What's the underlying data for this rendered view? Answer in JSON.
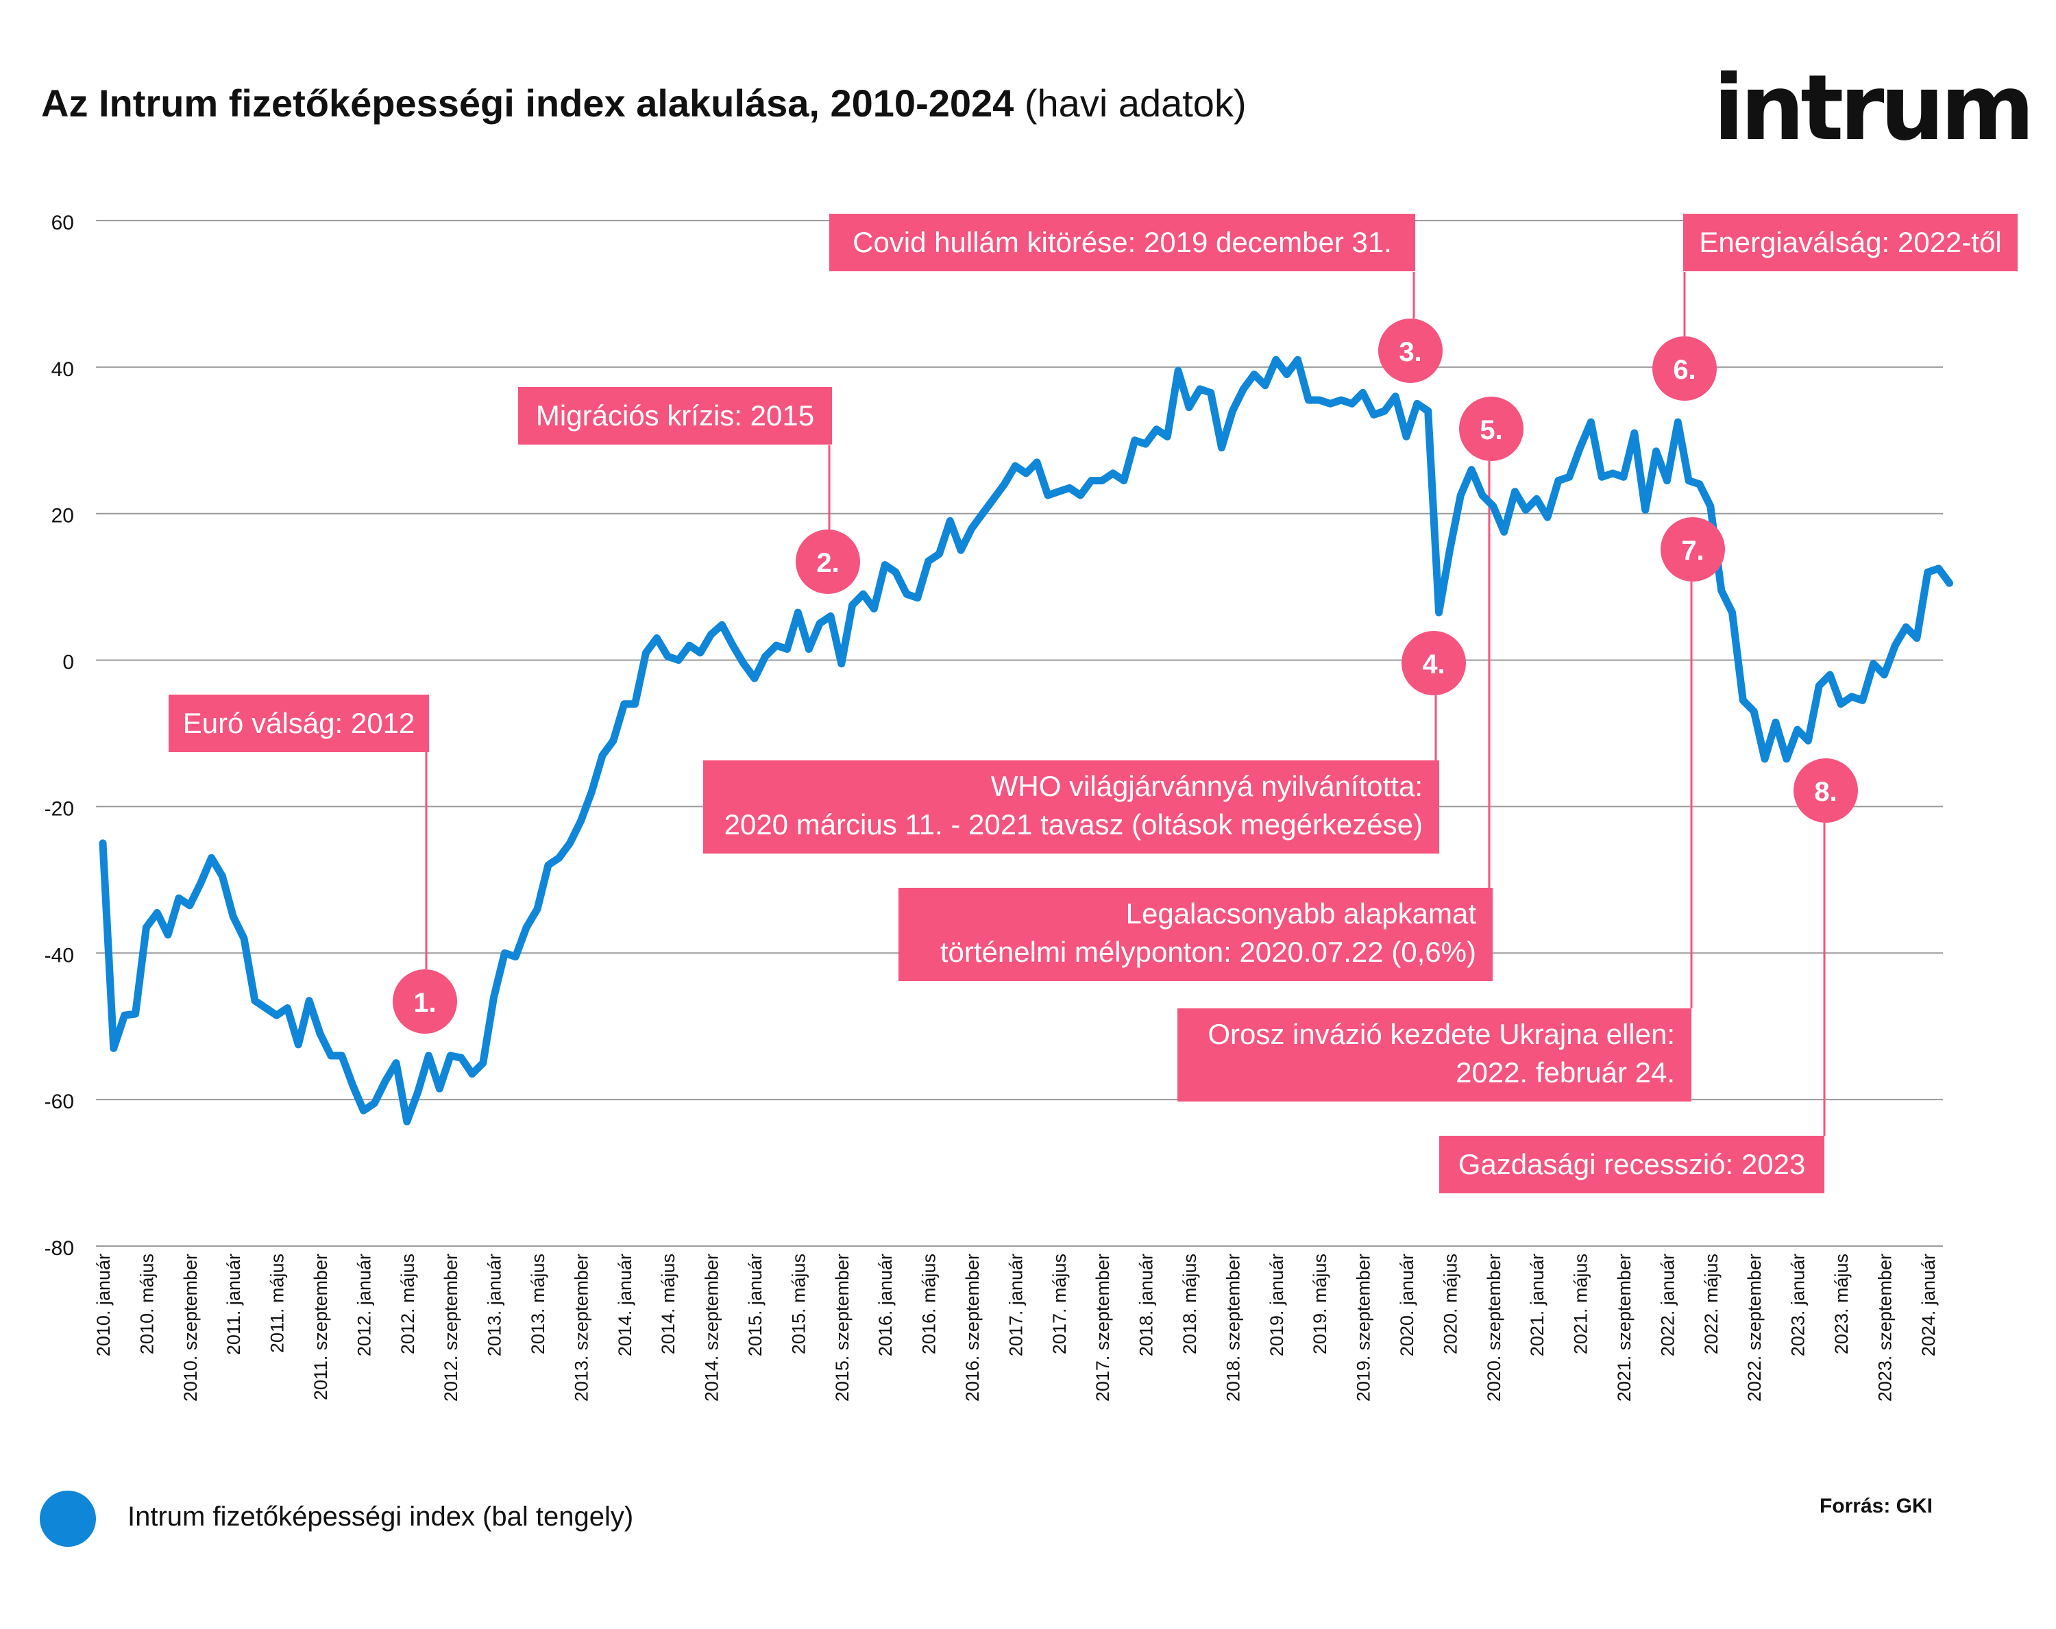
{
  "title": {
    "bold": "Az Intrum fizetőképességi index alakulása, 2010-2024",
    "normal": "(havi adatok)"
  },
  "brand": "intrum",
  "legend_label": "Intrum fizetőképességi index (bal tengely)",
  "source": "Forrás: GKI",
  "colors": {
    "line": "#0f86d8",
    "accent": "#f5547f",
    "grid": "#9a9a9a",
    "text": "#111111"
  },
  "chart_data": {
    "type": "line",
    "ylim": [
      -80,
      60
    ],
    "yticks": [
      60,
      40,
      20,
      0,
      -20,
      -40,
      -60,
      -80
    ],
    "xtick_labels": [
      "2010. január",
      "2010. május",
      "2010. szeptember",
      "2011. január",
      "2011. május",
      "2011. szeptember",
      "2012. január",
      "2012. május",
      "2012. szeptember",
      "2013. január",
      "2013. május",
      "2013. szeptember",
      "2014. január",
      "2014. május",
      "2014. szeptember",
      "2015. január",
      "2015. május",
      "2015. szeptember",
      "2016. január",
      "2016. május",
      "2016. szeptember",
      "2017. január",
      "2017. május",
      "2017. szeptember",
      "2018. január",
      "2018. május",
      "2018. szeptember",
      "2019. január",
      "2019. május",
      "2019. szeptember",
      "2020. január",
      "2020. május",
      "2020. szeptember",
      "2021. január",
      "2021. május",
      "2021. szeptember",
      "2022. január",
      "2022. május",
      "2022. szeptember",
      "2023. január",
      "2023. május",
      "2023. szeptember",
      "2024. január"
    ],
    "series": [
      {
        "name": "Intrum fizetőképességi index (bal tengely)",
        "start": "2010-01",
        "values": [
          -25,
          -53,
          -48.5,
          -48.3,
          -36.5,
          -34.5,
          -37.5,
          -32.5,
          -33.5,
          -30.5,
          -27,
          -29.5,
          -35,
          -38,
          -46.5,
          -47.5,
          -48.5,
          -47.5,
          -52.5,
          -46.5,
          -51,
          -54,
          -54,
          -58,
          -61.5,
          -60.5,
          -57.5,
          -55,
          -63,
          -59,
          -54,
          -58.5,
          -54,
          -54.3,
          -56.5,
          -55,
          -46,
          -40,
          -40.5,
          -36.5,
          -34,
          -28,
          -27,
          -25,
          -22,
          -18,
          -13,
          -11,
          -6,
          -6,
          1,
          3,
          0.5,
          0,
          2,
          1,
          3.5,
          4.8,
          2,
          -0.5,
          -2.5,
          0.5,
          2,
          1.5,
          6.5,
          1.5,
          5,
          6,
          -0.5,
          7.5,
          9,
          7,
          13,
          12,
          9,
          8.5,
          13.5,
          14.5,
          19,
          15,
          18,
          20,
          22,
          24,
          26.5,
          25.5,
          27,
          22.5,
          23,
          23.5,
          22.5,
          24.5,
          24.5,
          25.5,
          24.5,
          30,
          29.5,
          31.5,
          30.5,
          39.5,
          34.5,
          37,
          36.5,
          29,
          34,
          37,
          39,
          37.5,
          41,
          39,
          41,
          35.5,
          35.5,
          35,
          35.5,
          35,
          36.5,
          33.5,
          34,
          36,
          30.5,
          35,
          34,
          6.5,
          15,
          22.5,
          26,
          22.5,
          21,
          17.5,
          23,
          20.5,
          22,
          19.5,
          24.5,
          25,
          29,
          32.5,
          25,
          25.5,
          25,
          31,
          20.5,
          28.5,
          24.5,
          32.5,
          24.5,
          24,
          21,
          9.5,
          6.5,
          -5.5,
          -7,
          -13.5,
          -8.5,
          -13.5,
          -9.5,
          -11,
          -3.5,
          -2,
          -6,
          -5,
          -5.5,
          -0.5,
          -2,
          2,
          4.5,
          3,
          12,
          12.5,
          10.5
        ]
      }
    ],
    "events": [
      {
        "num": "1.",
        "lines": [
          "Euró válság: 2012"
        ]
      },
      {
        "num": "2.",
        "lines": [
          "Migrációs krízis: 2015"
        ]
      },
      {
        "num": "3.",
        "lines": [
          "Covid hullám kitörése: 2019 december 31."
        ]
      },
      {
        "num": "4.",
        "lines": [
          "WHO világjárvánnyá nyilvánította:",
          "2020 március 11. - 2021 tavasz (oltások megérkezése)"
        ]
      },
      {
        "num": "5.",
        "lines": [
          "Legalacsonyabb alapkamat",
          "történelmi mélyponton: 2020.07.22 (0,6%)"
        ]
      },
      {
        "num": "6.",
        "lines": [
          "Energiaválság: 2022-től"
        ]
      },
      {
        "num": "7.",
        "lines": [
          "Orosz invázió kezdete Ukrajna ellen:",
          "2022. február 24."
        ]
      },
      {
        "num": "8.",
        "lines": [
          "Gazdasági recesszió: 2023"
        ]
      }
    ]
  }
}
